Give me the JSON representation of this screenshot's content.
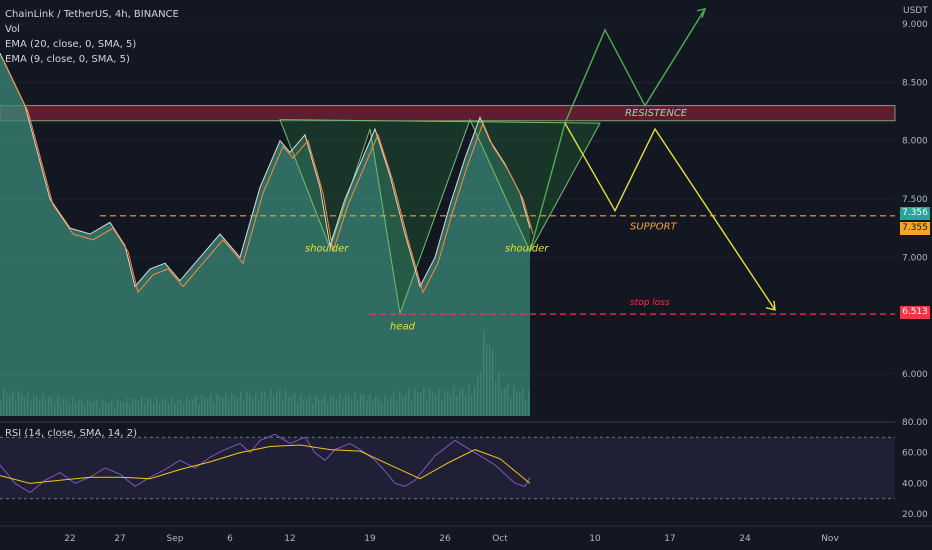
{
  "header": {
    "symbol": "ChainLink / TetherUS, 4h, BINANCE",
    "vol_label": "Vol",
    "ema1_label": "EMA (20, close, 0, SMA, 5)",
    "ema2_label": "EMA (9, close, 0, SMA, 5)",
    "rsi_label": "RSI (14, close, SMA, 14, 2)",
    "currency": "USDT"
  },
  "price_tags": {
    "current": "7.356",
    "ema": "7.355",
    "stop": "6.513"
  },
  "colors": {
    "background": "#131722",
    "area_fill": "#3b8a78",
    "resistance": "#7a1f3a",
    "support": "#f5a623",
    "stop_loss": "#f23645",
    "bull_path": "#4caf50",
    "bear_path": "#e6e13a",
    "rsi_line": "#7e57c2",
    "rsi_ma": "#f5c518"
  },
  "chart_data": {
    "type": "line",
    "price_axis": {
      "ticks": [
        "9.000",
        "8.500",
        "8.000",
        "7.500",
        "7.000",
        "6.000"
      ],
      "ylim": [
        5.7,
        9.1
      ]
    },
    "rsi_axis": {
      "ticks": [
        "80.00",
        "60.00",
        "40.00",
        "20.00"
      ],
      "ylim": [
        15,
        85
      ]
    },
    "time_axis": [
      "22",
      "27",
      "Sep",
      "6",
      "12",
      "19",
      "26",
      "Oct",
      "10",
      "17",
      "24",
      "Nov"
    ],
    "price": [
      [
        0,
        8.75
      ],
      [
        5,
        8.3
      ],
      [
        10,
        7.5
      ],
      [
        14,
        7.25
      ],
      [
        18,
        7.2
      ],
      [
        22,
        7.3
      ],
      [
        25,
        7.1
      ],
      [
        27,
        6.75
      ],
      [
        30,
        6.9
      ],
      [
        33,
        6.95
      ],
      [
        36,
        6.8
      ],
      [
        40,
        7.0
      ],
      [
        44,
        7.2
      ],
      [
        48,
        7.0
      ],
      [
        52,
        7.6
      ],
      [
        56,
        8.0
      ],
      [
        58,
        7.9
      ],
      [
        61,
        8.05
      ],
      [
        64,
        7.6
      ],
      [
        66,
        7.1
      ],
      [
        69,
        7.5
      ],
      [
        72,
        7.8
      ],
      [
        75,
        8.1
      ],
      [
        78,
        7.7
      ],
      [
        81,
        7.2
      ],
      [
        84,
        6.75
      ],
      [
        87,
        7.0
      ],
      [
        90,
        7.45
      ],
      [
        93,
        7.85
      ],
      [
        96,
        8.2
      ],
      [
        98,
        8.0
      ],
      [
        101,
        7.8
      ],
      [
        104,
        7.55
      ],
      [
        106,
        7.25
      ]
    ],
    "volume": [
      [
        0,
        0.28
      ],
      [
        8,
        0.22
      ],
      [
        15,
        0.18
      ],
      [
        22,
        0.16
      ],
      [
        28,
        0.2
      ],
      [
        35,
        0.18
      ],
      [
        42,
        0.22
      ],
      [
        50,
        0.25
      ],
      [
        56,
        0.28
      ],
      [
        61,
        0.2
      ],
      [
        66,
        0.22
      ],
      [
        72,
        0.24
      ],
      [
        76,
        0.2
      ],
      [
        81,
        0.26
      ],
      [
        84,
        0.3
      ],
      [
        88,
        0.27
      ],
      [
        92,
        0.3
      ],
      [
        95,
        0.32
      ],
      [
        97,
        1.0
      ],
      [
        100,
        0.35
      ],
      [
        106,
        0.26
      ]
    ],
    "levels": {
      "resistance_band": [
        8.17,
        8.3
      ],
      "support": 7.356,
      "stop_loss": 6.513
    },
    "pattern_labels": [
      "shoulder",
      "head",
      "shoulder"
    ],
    "level_labels": {
      "resistance": "RESISTENCE",
      "support": "SUPPORT",
      "stop_loss": "stop loss"
    },
    "bull_projection": [
      [
        106,
        7.05
      ],
      [
        113,
        8.15
      ],
      [
        121,
        8.95
      ],
      [
        129,
        8.3
      ],
      [
        141,
        9.13
      ]
    ],
    "bear_projection": [
      [
        113,
        8.15
      ],
      [
        123,
        7.4
      ],
      [
        131,
        8.1
      ],
      [
        155,
        6.55
      ]
    ],
    "rsi": [
      [
        0,
        52
      ],
      [
        3,
        40
      ],
      [
        6,
        34
      ],
      [
        9,
        42
      ],
      [
        12,
        47
      ],
      [
        15,
        40
      ],
      [
        18,
        44
      ],
      [
        21,
        50
      ],
      [
        24,
        46
      ],
      [
        27,
        38
      ],
      [
        30,
        44
      ],
      [
        33,
        49
      ],
      [
        36,
        55
      ],
      [
        39,
        50
      ],
      [
        42,
        57
      ],
      [
        45,
        62
      ],
      [
        48,
        66
      ],
      [
        50,
        60
      ],
      [
        52,
        68
      ],
      [
        55,
        72
      ],
      [
        58,
        66
      ],
      [
        61,
        70
      ],
      [
        63,
        60
      ],
      [
        65,
        55
      ],
      [
        67,
        62
      ],
      [
        70,
        66
      ],
      [
        73,
        60
      ],
      [
        75,
        55
      ],
      [
        77,
        48
      ],
      [
        79,
        40
      ],
      [
        81,
        38
      ],
      [
        83,
        42
      ],
      [
        85,
        50
      ],
      [
        87,
        58
      ],
      [
        89,
        63
      ],
      [
        91,
        68
      ],
      [
        93,
        64
      ],
      [
        95,
        60
      ],
      [
        97,
        56
      ],
      [
        99,
        52
      ],
      [
        101,
        46
      ],
      [
        103,
        40
      ],
      [
        105,
        38
      ],
      [
        106,
        44
      ]
    ],
    "rsi_ma": [
      [
        0,
        45
      ],
      [
        6,
        40
      ],
      [
        12,
        42
      ],
      [
        18,
        44
      ],
      [
        24,
        44
      ],
      [
        30,
        43
      ],
      [
        36,
        49
      ],
      [
        42,
        54
      ],
      [
        48,
        60
      ],
      [
        54,
        64
      ],
      [
        60,
        65
      ],
      [
        66,
        62
      ],
      [
        72,
        61
      ],
      [
        78,
        52
      ],
      [
        84,
        43
      ],
      [
        90,
        54
      ],
      [
        95,
        62
      ],
      [
        100,
        56
      ],
      [
        106,
        40
      ]
    ]
  }
}
